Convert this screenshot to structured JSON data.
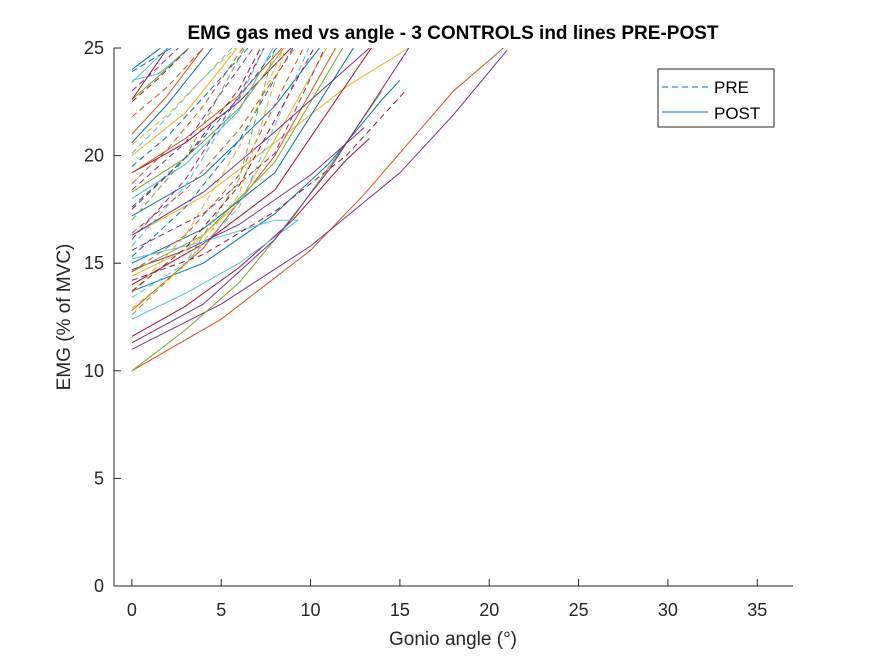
{
  "chart_data": {
    "type": "line",
    "title": "EMG gas med vs angle - 3 CONTROLS ind lines PRE-POST",
    "xlabel": "Gonio angle (°)",
    "ylabel": "EMG (% of MVC)",
    "xlim": [
      -1,
      37
    ],
    "ylim": [
      0,
      25
    ],
    "xticks": [
      0,
      5,
      10,
      15,
      20,
      25,
      30,
      35
    ],
    "yticks": [
      0,
      5,
      10,
      15,
      20,
      25
    ],
    "grid": false,
    "legend": {
      "location": "top-right",
      "entries": [
        {
          "label": "PRE",
          "style": "dashed",
          "color": "#0072BD"
        },
        {
          "label": "POST",
          "style": "solid",
          "color": "#0072BD"
        }
      ]
    },
    "colors": [
      "#0072BD",
      "#D95319",
      "#EDB120",
      "#7E2F8E",
      "#77AC30",
      "#4DBEEE",
      "#A2142F"
    ],
    "series": [
      {
        "style": "solid",
        "color": "#D95319",
        "x": [
          0,
          5,
          10,
          13,
          15.5,
          18,
          20.8
        ],
        "y": [
          10.0,
          12.4,
          15.6,
          18.2,
          20.6,
          23.0,
          25.0
        ]
      },
      {
        "style": "solid",
        "color": "#7E2F8E",
        "x": [
          0,
          5,
          10,
          15,
          18,
          21
        ],
        "y": [
          11.0,
          13.1,
          15.8,
          19.2,
          21.9,
          24.9
        ]
      },
      {
        "style": "solid",
        "color": "#77AC30",
        "x": [
          0,
          3,
          6,
          9,
          12,
          14
        ],
        "y": [
          10.0,
          11.9,
          14.1,
          17.1,
          20.6,
          23.0
        ]
      },
      {
        "style": "solid",
        "color": "#A2142F",
        "x": [
          0,
          3,
          6,
          9,
          12,
          13.3
        ],
        "y": [
          11.6,
          13.0,
          14.8,
          17.0,
          19.8,
          20.8
        ]
      },
      {
        "style": "solid",
        "color": "#0072BD",
        "x": [
          0,
          4,
          8,
          11,
          14,
          15
        ],
        "y": [
          13.7,
          15.0,
          17.3,
          19.6,
          22.6,
          23.5
        ]
      },
      {
        "style": "solid",
        "color": "#4DBEEE",
        "x": [
          0,
          3,
          6,
          9.3
        ],
        "y": [
          12.4,
          13.6,
          15.0,
          17.0
        ]
      },
      {
        "style": "solid",
        "color": "#EDB120",
        "x": [
          0,
          4,
          8,
          12,
          15.5
        ],
        "y": [
          16.3,
          18.1,
          20.6,
          23.2,
          25.0
        ]
      },
      {
        "style": "solid",
        "color": "#7E2F8E",
        "x": [
          0,
          3,
          6,
          10,
          13
        ],
        "y": [
          14.7,
          15.6,
          16.8,
          19.1,
          21.3
        ]
      },
      {
        "style": "solid",
        "color": "#7E2F8E",
        "x": [
          0,
          4,
          8,
          11,
          15.5
        ],
        "y": [
          11.3,
          13.1,
          16.1,
          19.3,
          25.0
        ]
      },
      {
        "style": "solid",
        "color": "#D95319",
        "x": [
          0,
          4,
          8,
          11.4
        ],
        "y": [
          12.8,
          15.7,
          20.0,
          25.0
        ]
      },
      {
        "style": "solid",
        "color": "#0072BD",
        "x": [
          0,
          4,
          8,
          10.5
        ],
        "y": [
          17.2,
          19.1,
          22.3,
          25.0
        ]
      },
      {
        "style": "solid",
        "color": "#77AC30",
        "x": [
          0,
          4,
          8,
          11.8
        ],
        "y": [
          14.6,
          16.3,
          19.7,
          25.0
        ]
      },
      {
        "style": "solid",
        "color": "#A2142F",
        "x": [
          0,
          3,
          6,
          8.9
        ],
        "y": [
          19.2,
          20.6,
          22.5,
          25.0
        ]
      },
      {
        "style": "solid",
        "color": "#4DBEEE",
        "x": [
          0,
          3,
          6,
          7.9
        ],
        "y": [
          18.0,
          19.6,
          22.1,
          25.0
        ]
      },
      {
        "style": "solid",
        "color": "#EDB120",
        "x": [
          0,
          3,
          5.9
        ],
        "y": [
          20.0,
          22.0,
          25.0
        ]
      },
      {
        "style": "solid",
        "color": "#0072BD",
        "x": [
          0,
          2,
          4.5
        ],
        "y": [
          20.6,
          22.4,
          25.0
        ]
      },
      {
        "style": "solid",
        "color": "#D95319",
        "x": [
          0,
          2,
          4
        ],
        "y": [
          21.0,
          22.8,
          25.0
        ]
      },
      {
        "style": "solid",
        "color": "#4DBEEE",
        "x": [
          0,
          1.5,
          3.2
        ],
        "y": [
          23.5,
          23.8,
          25.0
        ]
      },
      {
        "style": "solid",
        "color": "#77AC30",
        "x": [
          0,
          1.5,
          3.2
        ],
        "y": [
          22.6,
          23.7,
          25.0
        ]
      },
      {
        "style": "solid",
        "color": "#A2142F",
        "x": [
          0,
          1.0,
          2.0
        ],
        "y": [
          22.6,
          23.8,
          25.0
        ]
      },
      {
        "style": "solid",
        "color": "#0072BD",
        "x": [
          0,
          0.8,
          1.6
        ],
        "y": [
          24.0,
          24.5,
          25.0
        ]
      },
      {
        "style": "solid",
        "color": "#4DBEEE",
        "x": [
          0,
          1.0,
          2.0
        ],
        "y": [
          23.4,
          24.2,
          25.0
        ]
      },
      {
        "style": "solid",
        "color": "#EDB120",
        "x": [
          0,
          3,
          6,
          10.9
        ],
        "y": [
          14.4,
          15.6,
          17.8,
          25.0
        ]
      },
      {
        "style": "solid",
        "color": "#0072BD",
        "x": [
          0,
          4,
          8,
          12.4
        ],
        "y": [
          15.0,
          16.6,
          19.2,
          25.0
        ]
      },
      {
        "style": "solid",
        "color": "#7E2F8E",
        "x": [
          0,
          4,
          8,
          13.3
        ],
        "y": [
          16.3,
          18.3,
          21.1,
          25.0
        ]
      },
      {
        "style": "solid",
        "color": "#4DBEEE",
        "x": [
          0,
          4,
          8,
          9.3
        ],
        "y": [
          15.2,
          16.0,
          17.0,
          17.0
        ]
      },
      {
        "style": "solid",
        "color": "#A2142F",
        "x": [
          0,
          4,
          8,
          13.4
        ],
        "y": [
          14.0,
          15.9,
          18.4,
          25.0
        ]
      },
      {
        "style": "solid",
        "color": "#77AC30",
        "x": [
          0,
          3,
          6,
          8.5
        ],
        "y": [
          18.3,
          19.9,
          22.2,
          25.0
        ]
      },
      {
        "style": "solid",
        "color": "#D95319",
        "x": [
          0,
          3,
          6,
          8.4
        ],
        "y": [
          19.2,
          20.8,
          22.8,
          25.0
        ]
      },
      {
        "style": "dashed",
        "color": "#A2142F",
        "x": [
          0,
          4,
          8,
          12,
          15.3
        ],
        "y": [
          14.2,
          15.4,
          17.4,
          20.0,
          23.0
        ]
      },
      {
        "style": "dashed",
        "color": "#7E2F8E",
        "x": [
          0,
          4,
          8,
          10.8
        ],
        "y": [
          15.6,
          17.3,
          20.1,
          25.0
        ]
      },
      {
        "style": "dashed",
        "color": "#D95319",
        "x": [
          0,
          3,
          6,
          9.6
        ],
        "y": [
          14.6,
          16.3,
          19.1,
          25.0
        ]
      },
      {
        "style": "dashed",
        "color": "#0072BD",
        "x": [
          0,
          3,
          6,
          9.0
        ],
        "y": [
          15.3,
          17.6,
          20.7,
          25.0
        ]
      },
      {
        "style": "dashed",
        "color": "#EDB120",
        "x": [
          0,
          3,
          6,
          8.5
        ],
        "y": [
          13.6,
          16.3,
          20.4,
          25.0
        ]
      },
      {
        "style": "dashed",
        "color": "#4DBEEE",
        "x": [
          0,
          3,
          6,
          7.4
        ],
        "y": [
          15.8,
          18.6,
          22.6,
          25.0
        ]
      },
      {
        "style": "dashed",
        "color": "#A2142F",
        "x": [
          0,
          3,
          6,
          7.2
        ],
        "y": [
          17.5,
          19.9,
          23.1,
          25.0
        ]
      },
      {
        "style": "dashed",
        "color": "#7E2F8E",
        "x": [
          0,
          3,
          6.8
        ],
        "y": [
          18.4,
          20.6,
          25.0
        ]
      },
      {
        "style": "dashed",
        "color": "#77AC30",
        "x": [
          0,
          3,
          6.3
        ],
        "y": [
          17.0,
          19.9,
          25.0
        ]
      },
      {
        "style": "dashed",
        "color": "#D95319",
        "x": [
          0,
          2,
          4,
          6.2
        ],
        "y": [
          18.7,
          20.3,
          22.3,
          25.0
        ]
      },
      {
        "style": "dashed",
        "color": "#0072BD",
        "x": [
          0,
          2,
          4,
          6.5
        ],
        "y": [
          19.5,
          20.9,
          22.7,
          25.0
        ]
      },
      {
        "style": "dashed",
        "color": "#EDB120",
        "x": [
          0,
          2,
          4,
          5.8
        ],
        "y": [
          20.5,
          21.9,
          23.6,
          25.0
        ]
      },
      {
        "style": "dashed",
        "color": "#4DBEEE",
        "x": [
          0,
          2,
          4,
          5.6
        ],
        "y": [
          20.1,
          21.8,
          23.6,
          25.0
        ]
      },
      {
        "style": "dashed",
        "color": "#D95319",
        "x": [
          0,
          2,
          4
        ],
        "y": [
          21.8,
          23.2,
          25.0
        ]
      },
      {
        "style": "dashed",
        "color": "#A2142F",
        "x": [
          0,
          1.5,
          3.2
        ],
        "y": [
          22.5,
          23.6,
          25.0
        ]
      },
      {
        "style": "dashed",
        "color": "#7E2F8E",
        "x": [
          0,
          1.2,
          2.6
        ],
        "y": [
          23.0,
          23.9,
          25.0
        ]
      },
      {
        "style": "dashed",
        "color": "#0072BD",
        "x": [
          0,
          1.0,
          2.2
        ],
        "y": [
          23.9,
          24.4,
          25.0
        ]
      },
      {
        "style": "dashed",
        "color": "#77AC30",
        "x": [
          0,
          3,
          6,
          8.0
        ],
        "y": [
          12.6,
          15.0,
          18.9,
          25.0
        ]
      },
      {
        "style": "dashed",
        "color": "#EDB120",
        "x": [
          0,
          3,
          6,
          8.6
        ],
        "y": [
          12.9,
          14.9,
          18.2,
          25.0
        ]
      },
      {
        "style": "dashed",
        "color": "#4DBEEE",
        "x": [
          0,
          3,
          6,
          9.9
        ],
        "y": [
          13.4,
          15.0,
          17.6,
          25.0
        ]
      },
      {
        "style": "dashed",
        "color": "#D95319",
        "x": [
          0,
          3,
          6,
          9.1
        ],
        "y": [
          16.4,
          18.4,
          21.2,
          25.0
        ]
      },
      {
        "style": "dashed",
        "color": "#A2142F",
        "x": [
          0,
          3,
          6,
          10.2
        ],
        "y": [
          13.7,
          15.7,
          18.6,
          25.0
        ]
      },
      {
        "style": "dashed",
        "color": "#0072BD",
        "x": [
          0,
          3,
          6,
          8.1
        ],
        "y": [
          17.6,
          19.9,
          22.7,
          25.0
        ]
      },
      {
        "style": "dashed",
        "color": "#7E2F8E",
        "x": [
          0,
          3,
          6,
          7.4
        ],
        "y": [
          16.1,
          18.9,
          22.8,
          25.0
        ]
      }
    ]
  }
}
